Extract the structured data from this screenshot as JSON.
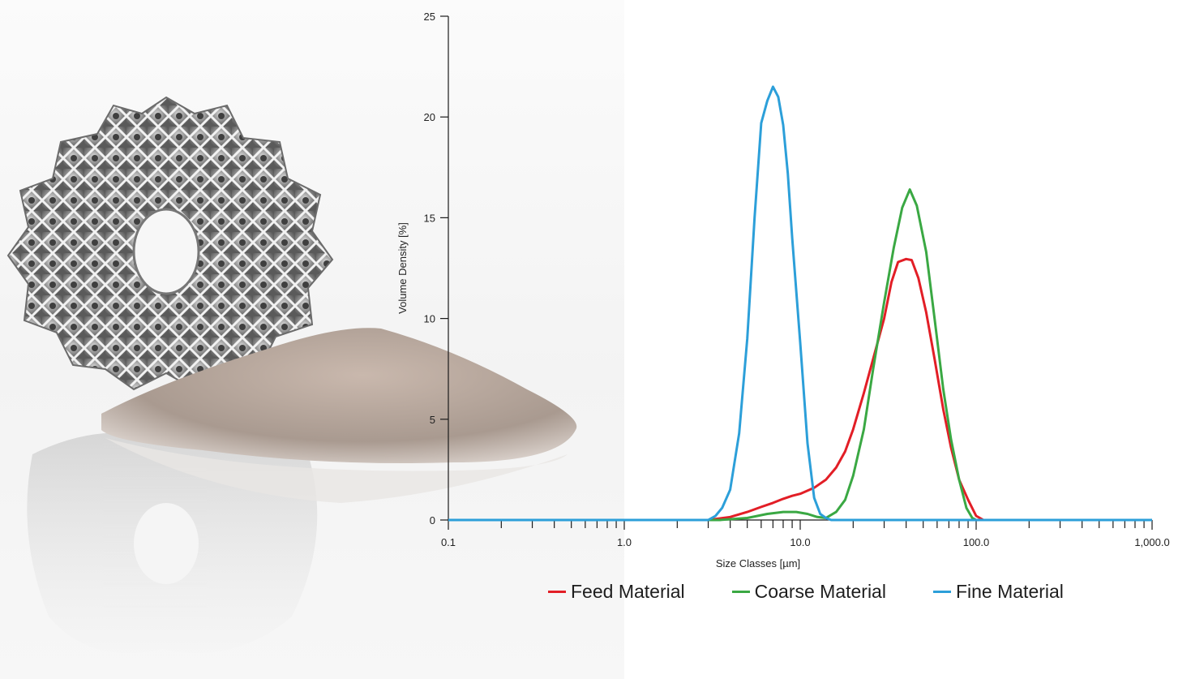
{
  "colors": {
    "feed": "#e21e26",
    "coarse": "#3aa843",
    "fine": "#2c9fd9",
    "axis": "#1a1a1a"
  },
  "photo": {
    "icon": "lattice-disc-and-powder-photo"
  },
  "chart_data": {
    "type": "line",
    "xlabel": "Size Classes [µm]",
    "ylabel": "Volume Density [%]",
    "x_scale": "log",
    "xlim": [
      0.1,
      1000
    ],
    "ylim": [
      0,
      25
    ],
    "x_ticks": [
      {
        "value": 0.1,
        "label": "0.1"
      },
      {
        "value": 1,
        "label": "1.0"
      },
      {
        "value": 10,
        "label": "10.0"
      },
      {
        "value": 100,
        "label": "100.0"
      },
      {
        "value": 1000,
        "label": "1,000.0"
      }
    ],
    "y_ticks": [
      {
        "value": 0,
        "label": "0"
      },
      {
        "value": 5,
        "label": "5"
      },
      {
        "value": 10,
        "label": "10"
      },
      {
        "value": 15,
        "label": "15"
      },
      {
        "value": 20,
        "label": "20"
      },
      {
        "value": 25,
        "label": "25"
      }
    ],
    "grid": false,
    "legend_position": "bottom",
    "series": [
      {
        "name": "Feed Material",
        "color_key": "feed",
        "points": [
          [
            0.1,
            0
          ],
          [
            3,
            0
          ],
          [
            4,
            0.15
          ],
          [
            5,
            0.4
          ],
          [
            6,
            0.65
          ],
          [
            7,
            0.85
          ],
          [
            8,
            1.05
          ],
          [
            9,
            1.2
          ],
          [
            10,
            1.3
          ],
          [
            12,
            1.6
          ],
          [
            14,
            2.0
          ],
          [
            16,
            2.6
          ],
          [
            18,
            3.4
          ],
          [
            20,
            4.5
          ],
          [
            23,
            6.3
          ],
          [
            26,
            8.0
          ],
          [
            30,
            10.0
          ],
          [
            33,
            11.8
          ],
          [
            36,
            12.8
          ],
          [
            40,
            12.95
          ],
          [
            43,
            12.9
          ],
          [
            47,
            12.0
          ],
          [
            52,
            10.3
          ],
          [
            58,
            8.0
          ],
          [
            65,
            5.5
          ],
          [
            72,
            3.6
          ],
          [
            80,
            2.0
          ],
          [
            90,
            1.0
          ],
          [
            100,
            0.2
          ],
          [
            110,
            0
          ],
          [
            1000,
            0
          ]
        ]
      },
      {
        "name": "Coarse Material",
        "color_key": "coarse",
        "points": [
          [
            0.1,
            0
          ],
          [
            3.5,
            0
          ],
          [
            5,
            0.1
          ],
          [
            6.5,
            0.3
          ],
          [
            8,
            0.4
          ],
          [
            9.5,
            0.4
          ],
          [
            11,
            0.3
          ],
          [
            12.5,
            0.15
          ],
          [
            14,
            0.1
          ],
          [
            16,
            0.4
          ],
          [
            18,
            1.0
          ],
          [
            20,
            2.2
          ],
          [
            23,
            4.5
          ],
          [
            26,
            7.5
          ],
          [
            30,
            10.8
          ],
          [
            34,
            13.5
          ],
          [
            38,
            15.5
          ],
          [
            42,
            16.4
          ],
          [
            46,
            15.6
          ],
          [
            52,
            13.3
          ],
          [
            58,
            10.0
          ],
          [
            65,
            6.5
          ],
          [
            72,
            4.0
          ],
          [
            80,
            2.0
          ],
          [
            88,
            0.6
          ],
          [
            95,
            0.1
          ],
          [
            100,
            0
          ],
          [
            1000,
            0
          ]
        ]
      },
      {
        "name": "Fine Material",
        "color_key": "fine",
        "points": [
          [
            0.1,
            0
          ],
          [
            3,
            0
          ],
          [
            3.3,
            0.2
          ],
          [
            3.6,
            0.6
          ],
          [
            4,
            1.5
          ],
          [
            4.5,
            4.3
          ],
          [
            5,
            9.0
          ],
          [
            5.5,
            15.0
          ],
          [
            6,
            19.7
          ],
          [
            6.5,
            20.8
          ],
          [
            7,
            21.5
          ],
          [
            7.5,
            21.0
          ],
          [
            8,
            19.6
          ],
          [
            8.5,
            17.2
          ],
          [
            9,
            14.0
          ],
          [
            10,
            8.8
          ],
          [
            11,
            3.8
          ],
          [
            12,
            1.1
          ],
          [
            13,
            0.3
          ],
          [
            14,
            0.1
          ],
          [
            15,
            0
          ],
          [
            1000,
            0
          ]
        ]
      }
    ]
  }
}
